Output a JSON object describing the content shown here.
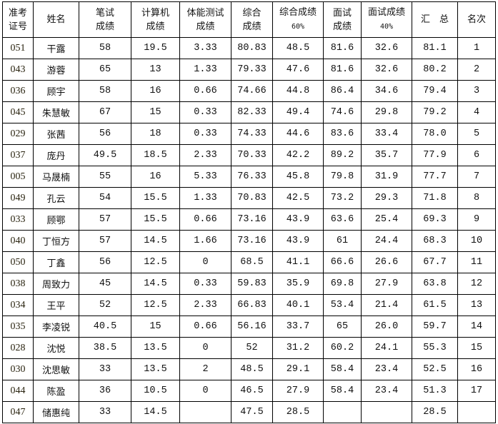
{
  "headers": [
    {
      "line1": "准考",
      "line2": "证号"
    },
    {
      "line1": "姓名",
      "line2": ""
    },
    {
      "line1": "笔试",
      "line2": "成绩"
    },
    {
      "line1": "计算机",
      "line2": "成绩"
    },
    {
      "line1": "体能测试",
      "line2": "成绩"
    },
    {
      "line1": "综合",
      "line2": "成绩"
    },
    {
      "line1": "综合成绩",
      "line2": "60%"
    },
    {
      "line1": "面试",
      "line2": "成绩"
    },
    {
      "line1": "面试成绩",
      "line2": "40%"
    },
    {
      "line1": "汇　总",
      "line2": ""
    },
    {
      "line1": "名次",
      "line2": ""
    }
  ],
  "rows": [
    [
      "051",
      "干露",
      "58",
      "19.5",
      "3.33",
      "80.83",
      "48.5",
      "81.6",
      "32.6",
      "81.1",
      "1"
    ],
    [
      "043",
      "游蓉",
      "65",
      "13",
      "1.33",
      "79.33",
      "47.6",
      "81.6",
      "32.6",
      "80.2",
      "2"
    ],
    [
      "036",
      "顾宇",
      "58",
      "16",
      "0.66",
      "74.66",
      "44.8",
      "86.4",
      "34.6",
      "79.4",
      "3"
    ],
    [
      "045",
      "朱慧敏",
      "67",
      "15",
      "0.33",
      "82.33",
      "49.4",
      "74.6",
      "29.8",
      "79.2",
      "4"
    ],
    [
      "029",
      "张茜",
      "56",
      "18",
      "0.33",
      "74.33",
      "44.6",
      "83.6",
      "33.4",
      "78.0",
      "5"
    ],
    [
      "037",
      "庞丹",
      "49.5",
      "18.5",
      "2.33",
      "70.33",
      "42.2",
      "89.2",
      "35.7",
      "77.9",
      "6"
    ],
    [
      "005",
      "马晟楠",
      "55",
      "16",
      "5.33",
      "76.33",
      "45.8",
      "79.8",
      "31.9",
      "77.7",
      "7"
    ],
    [
      "049",
      "孔云",
      "54",
      "15.5",
      "1.33",
      "70.83",
      "42.5",
      "73.2",
      "29.3",
      "71.8",
      "8"
    ],
    [
      "033",
      "顾鄂",
      "57",
      "15.5",
      "0.66",
      "73.16",
      "43.9",
      "63.6",
      "25.4",
      "69.3",
      "9"
    ],
    [
      "040",
      "丁恒方",
      "57",
      "14.5",
      "1.66",
      "73.16",
      "43.9",
      "61",
      "24.4",
      "68.3",
      "10"
    ],
    [
      "050",
      "丁鑫",
      "56",
      "12.5",
      "0",
      "68.5",
      "41.1",
      "66.6",
      "26.6",
      "67.7",
      "11"
    ],
    [
      "038",
      "周致力",
      "45",
      "14.5",
      "0.33",
      "59.83",
      "35.9",
      "69.8",
      "27.9",
      "63.8",
      "12"
    ],
    [
      "034",
      "王平",
      "52",
      "12.5",
      "2.33",
      "66.83",
      "40.1",
      "53.4",
      "21.4",
      "61.5",
      "13"
    ],
    [
      "035",
      "李凌锐",
      "40.5",
      "15",
      "0.66",
      "56.16",
      "33.7",
      "65",
      "26.0",
      "59.7",
      "14"
    ],
    [
      "028",
      "沈悦",
      "38.5",
      "13.5",
      "0",
      "52",
      "31.2",
      "60.2",
      "24.1",
      "55.3",
      "15"
    ],
    [
      "030",
      "沈思敏",
      "33",
      "13.5",
      "2",
      "48.5",
      "29.1",
      "58.4",
      "23.4",
      "52.5",
      "16"
    ],
    [
      "044",
      "陈盈",
      "36",
      "10.5",
      "0",
      "46.5",
      "27.9",
      "58.4",
      "23.4",
      "51.3",
      "17"
    ],
    [
      "047",
      "储惠纯",
      "33",
      "14.5",
      "",
      "47.5",
      "28.5",
      "",
      "",
      "28.5",
      ""
    ]
  ]
}
